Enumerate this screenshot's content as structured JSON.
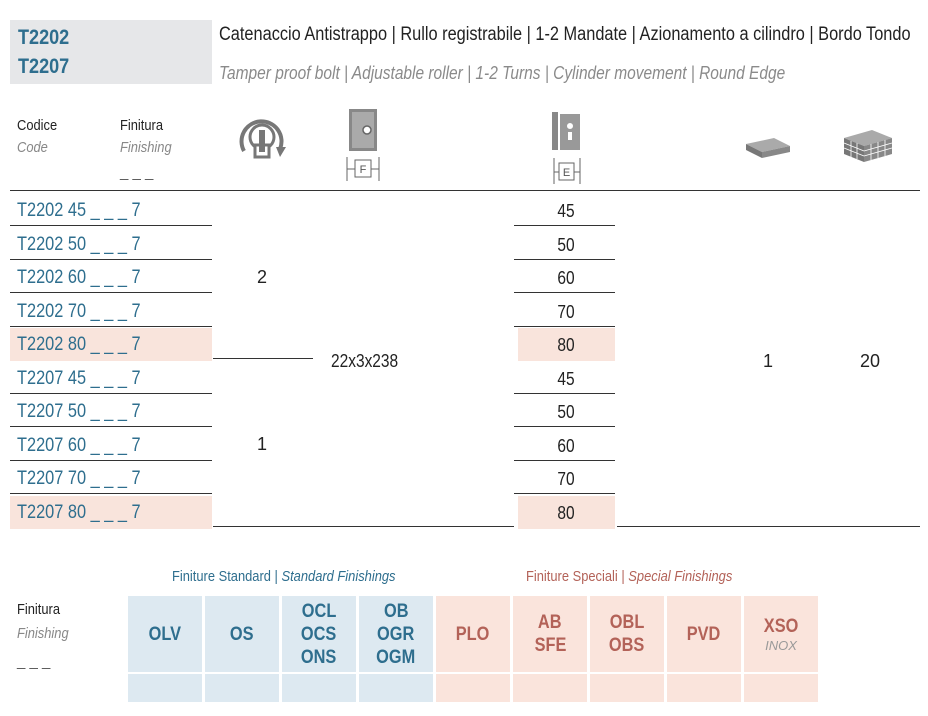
{
  "header": {
    "codes": [
      "T2202",
      "T2207"
    ],
    "title_it": "Catenaccio Antistrappo | Rullo registrabile | 1-2 Mandate | Azionamento a cilindro | Bordo Tondo",
    "title_en": "Tamper proof bolt | Adjustable roller | 1-2 Turns | Cylinder movement | Round Edge"
  },
  "columns": {
    "code_label": "Codice",
    "code_label_en": "Code",
    "finish_label": "Finitura",
    "finish_label_en": "Finishing",
    "finish_placeholder": "_ _ _",
    "f_label": "F",
    "e_label": "E"
  },
  "rows": [
    {
      "code": "T2202  45 _ _ _ 7",
      "e": "45",
      "highlight": false
    },
    {
      "code": "T2202  50 _ _ _ 7",
      "e": "50",
      "highlight": false
    },
    {
      "code": "T2202  60 _ _ _ 7",
      "e": "60",
      "highlight": false
    },
    {
      "code": "T2202  70 _ _ _ 7",
      "e": "70",
      "highlight": false
    },
    {
      "code": "T2202  80 _ _ _ 7",
      "e": "80",
      "highlight": true
    },
    {
      "code": "T2207  45 _ _ _ 7",
      "e": "45",
      "highlight": false
    },
    {
      "code": "T2207  50 _ _ _ 7",
      "e": "50",
      "highlight": false
    },
    {
      "code": "T2207  60 _ _ _ 7",
      "e": "60",
      "highlight": false
    },
    {
      "code": "T2207  70 _ _ _ 7",
      "e": "70",
      "highlight": false
    },
    {
      "code": "T2207  80 _ _ _ 7",
      "e": "80",
      "highlight": true
    }
  ],
  "values": {
    "turns_t2202": "2",
    "turns_t2207": "1",
    "faceplate": "22x3x238",
    "pack_qty": "1",
    "box_qty": "20"
  },
  "finishings": {
    "label": "Finitura",
    "label_en": "Finishing",
    "placeholder": "_ _ _",
    "standard_title_it": "Finiture Standard",
    "standard_title_en": "Standard Finishings",
    "special_title_it": "Finiture Speciali",
    "special_title_en": "Special Finishings",
    "standard": [
      {
        "lines": [
          "OLV"
        ]
      },
      {
        "lines": [
          "OS"
        ]
      },
      {
        "lines": [
          "OCL",
          "OCS",
          "ONS"
        ]
      },
      {
        "lines": [
          "OB",
          "OGR",
          "OGM"
        ]
      }
    ],
    "special": [
      {
        "lines": [
          "PLO"
        ]
      },
      {
        "lines": [
          "AB",
          "SFE"
        ]
      },
      {
        "lines": [
          "OBL",
          "OBS"
        ]
      },
      {
        "lines": [
          "PVD"
        ]
      },
      {
        "lines": [
          "XSO"
        ],
        "sub": "INOX"
      }
    ],
    "colors": {
      "standard_bg": "#dde9f1",
      "special_bg": "#fae4dc",
      "standard_text": "#2e6e8e",
      "special_text": "#b36258"
    }
  },
  "icons": [
    "cylinder-turn-icon",
    "faceplate-f-icon",
    "backset-e-icon",
    "single-pack-icon",
    "box-pack-icon"
  ]
}
